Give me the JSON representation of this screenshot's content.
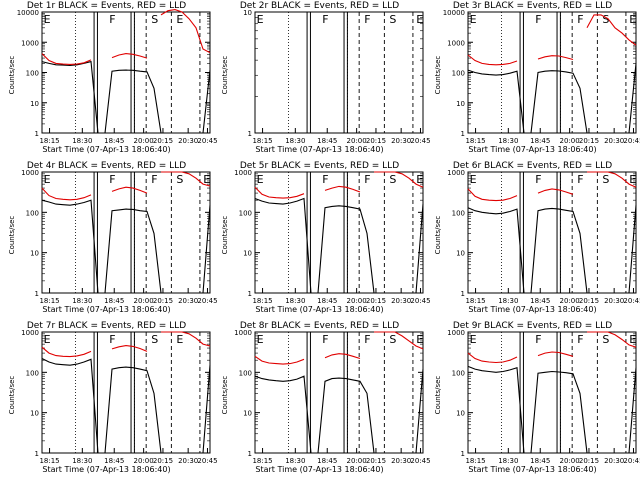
{
  "chart_data": [
    {
      "type": "line",
      "title": "Det 1r BLACK = Events, RED = LLD",
      "ylabel": "Counts/sec",
      "xlabel": "Start Time (07-Apr-13 18:06:40)",
      "yscale": "log",
      "ylim": [
        1,
        10000
      ],
      "yticklabels": [
        "1",
        "10",
        "100",
        "1000",
        "10000"
      ],
      "xticklabels": [
        "18:15",
        "18:30",
        "18:45",
        "20:00",
        "20:15",
        "20:30",
        "20:45"
      ],
      "markers": [
        "E",
        "F",
        "S",
        "E"
      ],
      "series": [
        {
          "color": "#000000",
          "values": [
            230,
            200,
            180,
            175,
            170,
            180,
            200,
            230,
            1,
            1,
            110,
            118,
            120,
            118,
            110,
            105,
            30,
            1,
            null,
            null,
            null,
            null,
            null,
            1,
            120
          ]
        },
        {
          "color": "#e00000",
          "values": [
            420,
            250,
            200,
            190,
            185,
            190,
            210,
            260,
            null,
            null,
            310,
            380,
            420,
            400,
            350,
            300,
            null,
            8000,
            11000,
            12000,
            10000,
            6000,
            3000,
            600,
            450
          ]
        }
      ]
    },
    {
      "type": "line",
      "title": "Det 2r BLACK = Events, RED = LLD",
      "ylabel": "Counts/sec",
      "xlabel": "Start Time (07-Apr-13 18:06:40)",
      "yscale": "log",
      "ylim": [
        1,
        10
      ],
      "yticklabels": [
        "1",
        "10"
      ],
      "xticklabels": [
        "18:15",
        "18:30",
        "18:45",
        "20:00",
        "20:15",
        "20:30",
        "20:45"
      ],
      "markers": [
        "E",
        "F",
        "F",
        "S",
        "E"
      ],
      "series": []
    },
    {
      "type": "line",
      "title": "Det 3r BLACK = Events, RED = LLD",
      "ylabel": "Counts/sec",
      "xlabel": "Start Time (07-Apr-13 18:06:40)",
      "yscale": "log",
      "ylim": [
        1,
        10000
      ],
      "yticklabels": [
        "1",
        "10",
        "100",
        "1000",
        "10000"
      ],
      "xticklabels": [
        "18:15",
        "18:30",
        "18:45",
        "20:00",
        "20:15",
        "20:30",
        "20:45"
      ],
      "markers": [
        "E",
        "F",
        "F",
        "S",
        "E"
      ],
      "series": [
        {
          "color": "#000000",
          "values": [
            120,
            100,
            90,
            85,
            82,
            85,
            95,
            110,
            1,
            1,
            100,
            110,
            115,
            112,
            105,
            95,
            30,
            1,
            null,
            null,
            null,
            null,
            null,
            1,
            200
          ]
        },
        {
          "color": "#e00000",
          "values": [
            380,
            250,
            200,
            185,
            180,
            185,
            200,
            240,
            null,
            null,
            280,
            330,
            360,
            350,
            310,
            270,
            null,
            3000,
            8000,
            8000,
            6000,
            3000,
            2000,
            1200,
            800
          ]
        }
      ]
    },
    {
      "type": "line",
      "title": "Det 4r BLACK = Events, RED = LLD",
      "ylabel": "Counts/sec",
      "xlabel": "Start Time (07-Apr-13 18:06:40)",
      "yscale": "log",
      "ylim": [
        1,
        1000
      ],
      "yticklabels": [
        "1",
        "10",
        "100",
        "1000"
      ],
      "xticklabels": [
        "18:15",
        "18:30",
        "18:45",
        "20:00",
        "20:15",
        "20:30",
        "20:45"
      ],
      "markers": [
        "E",
        "F",
        "F",
        "S",
        "E"
      ],
      "series": [
        {
          "color": "#000000",
          "values": [
            200,
            180,
            160,
            155,
            150,
            160,
            175,
            200,
            1,
            1,
            110,
            115,
            120,
            118,
            110,
            105,
            30,
            1,
            null,
            null,
            null,
            null,
            null,
            1,
            150
          ]
        },
        {
          "color": "#e00000",
          "values": [
            400,
            260,
            220,
            210,
            205,
            210,
            230,
            270,
            null,
            null,
            330,
            380,
            420,
            400,
            350,
            300,
            null,
            1000,
            1000,
            1000,
            1000,
            900,
            700,
            500,
            450
          ]
        }
      ]
    },
    {
      "type": "line",
      "title": "Det 5r BLACK = Events, RED = LLD",
      "ylabel": "Counts/sec",
      "xlabel": "Start Time (07-Apr-13 18:06:40)",
      "yscale": "log",
      "ylim": [
        1,
        1000
      ],
      "yticklabels": [
        "1",
        "10",
        "100",
        "1000"
      ],
      "xticklabels": [
        "18:15",
        "18:30",
        "18:45",
        "20:00",
        "20:15",
        "20:30",
        "20:45"
      ],
      "markers": [
        "E",
        "F",
        "F",
        "S",
        "E"
      ],
      "series": [
        {
          "color": "#000000",
          "values": [
            220,
            190,
            170,
            165,
            160,
            170,
            190,
            220,
            1,
            1,
            130,
            140,
            145,
            140,
            130,
            120,
            30,
            1,
            null,
            null,
            null,
            null,
            null,
            1,
            160
          ]
        },
        {
          "color": "#e00000",
          "values": [
            420,
            280,
            240,
            230,
            225,
            230,
            250,
            290,
            null,
            null,
            350,
            400,
            440,
            420,
            370,
            320,
            null,
            1000,
            1000,
            1000,
            1000,
            900,
            700,
            500,
            420
          ]
        }
      ]
    },
    {
      "type": "line",
      "title": "Det 6r BLACK = Events, RED = LLD",
      "ylabel": "Counts/sec",
      "xlabel": "Start Time (07-Apr-13 18:06:40)",
      "yscale": "log",
      "ylim": [
        1,
        1000
      ],
      "yticklabels": [
        "1",
        "10",
        "100",
        "1000"
      ],
      "xticklabels": [
        "18:15",
        "18:30",
        "18:45",
        "20:00",
        "20:15",
        "20:30",
        "20:45"
      ],
      "markers": [
        "E",
        "F",
        "F",
        "S",
        "E"
      ],
      "series": [
        {
          "color": "#000000",
          "values": [
            130,
            110,
            100,
            95,
            92,
            95,
            105,
            120,
            1,
            1,
            110,
            120,
            125,
            120,
            112,
            105,
            30,
            1,
            null,
            null,
            null,
            null,
            null,
            1,
            150
          ]
        },
        {
          "color": "#e00000",
          "values": [
            380,
            250,
            210,
            200,
            195,
            200,
            220,
            260,
            null,
            null,
            300,
            350,
            380,
            360,
            320,
            280,
            null,
            1000,
            1000,
            1000,
            1000,
            900,
            700,
            500,
            420
          ]
        }
      ]
    },
    {
      "type": "line",
      "title": "Det 7r BLACK = Events, RED = LLD",
      "ylabel": "Counts/sec",
      "xlabel": "Start Time (07-Apr-13 18:06:40)",
      "yscale": "log",
      "ylim": [
        1,
        1000
      ],
      "yticklabels": [
        "1",
        "10",
        "100",
        "1000"
      ],
      "xticklabels": [
        "18:15",
        "18:30",
        "18:45",
        "20:00",
        "20:15",
        "20:30",
        "20:45"
      ],
      "markers": [
        "E",
        "F",
        "S",
        "E"
      ],
      "series": [
        {
          "color": "#000000",
          "values": [
            220,
            180,
            160,
            155,
            150,
            160,
            180,
            210,
            1,
            1,
            120,
            130,
            135,
            130,
            120,
            110,
            30,
            1,
            null,
            null,
            null,
            null,
            null,
            1,
            150
          ]
        },
        {
          "color": "#e00000",
          "values": [
            420,
            300,
            260,
            250,
            245,
            255,
            280,
            330,
            null,
            null,
            380,
            430,
            460,
            440,
            390,
            330,
            null,
            1000,
            1000,
            1000,
            1000,
            900,
            700,
            500,
            450
          ]
        }
      ]
    },
    {
      "type": "line",
      "title": "Det 8r BLACK = Events, RED = LLD",
      "ylabel": "Counts/sec",
      "xlabel": "Start Time (07-Apr-13 18:06:40)",
      "yscale": "log",
      "ylim": [
        1,
        1000
      ],
      "yticklabels": [
        "1",
        "10",
        "100",
        "1000"
      ],
      "xticklabels": [
        "18:15",
        "18:30",
        "18:45",
        "20:00",
        "20:15",
        "20:30",
        "20:45"
      ],
      "markers": [
        "E",
        "F",
        "F",
        "S",
        "E"
      ],
      "series": [
        {
          "color": "#000000",
          "values": [
            80,
            70,
            65,
            62,
            60,
            62,
            68,
            80,
            1,
            1,
            60,
            70,
            72,
            70,
            65,
            60,
            30,
            1,
            null,
            null,
            null,
            null,
            null,
            1,
            120
          ]
        },
        {
          "color": "#e00000",
          "values": [
            250,
            190,
            170,
            165,
            160,
            165,
            180,
            210,
            null,
            null,
            230,
            270,
            290,
            280,
            250,
            220,
            null,
            1000,
            1000,
            1000,
            1000,
            800,
            600,
            450,
            380
          ]
        }
      ]
    },
    {
      "type": "line",
      "title": "Det 9r BLACK = Events, RED = LLD",
      "ylabel": "Counts/sec",
      "xlabel": "Start Time (07-Apr-13 18:06:40)",
      "yscale": "log",
      "ylim": [
        1,
        1000
      ],
      "yticklabels": [
        "1",
        "10",
        "100",
        "1000"
      ],
      "xticklabels": [
        "18:15",
        "18:30",
        "18:45",
        "20:00",
        "20:15",
        "20:30",
        "20:45"
      ],
      "markers": [
        "E",
        "F",
        "F",
        "S",
        "E"
      ],
      "series": [
        {
          "color": "#000000",
          "values": [
            140,
            120,
            110,
            105,
            100,
            105,
            115,
            130,
            1,
            1,
            95,
            100,
            105,
            102,
            98,
            92,
            30,
            1,
            null,
            null,
            null,
            null,
            null,
            1,
            130
          ]
        },
        {
          "color": "#e00000",
          "values": [
            300,
            220,
            190,
            180,
            175,
            180,
            200,
            240,
            null,
            null,
            260,
            300,
            320,
            310,
            280,
            250,
            null,
            1000,
            1000,
            1000,
            1000,
            850,
            650,
            480,
            420
          ]
        }
      ]
    }
  ]
}
